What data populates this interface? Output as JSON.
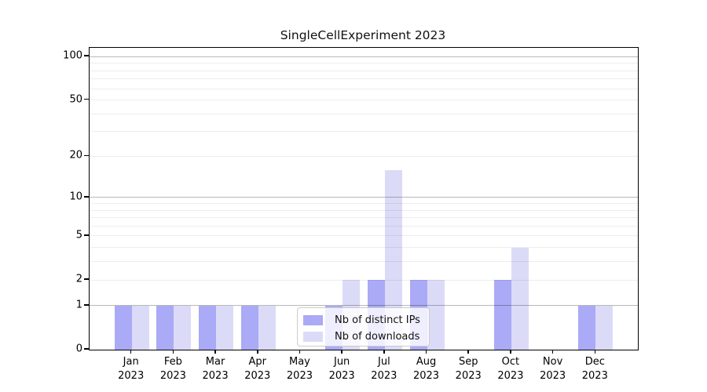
{
  "title": "SingleCellExperiment 2023",
  "chart_data": {
    "type": "bar",
    "title": "SingleCellExperiment 2023",
    "categories": [
      "Jan 2023",
      "Feb 2023",
      "Mar 2023",
      "Apr 2023",
      "May 2023",
      "Jun 2023",
      "Jul 2023",
      "Aug 2023",
      "Sep 2023",
      "Oct 2023",
      "Nov 2023",
      "Dec 2023"
    ],
    "series": [
      {
        "name": "Nb of distinct IPs",
        "color": "#aaaaf7",
        "values": [
          1,
          1,
          1,
          1,
          0,
          1,
          2,
          2,
          0,
          2,
          0,
          1
        ]
      },
      {
        "name": "Nb of downloads",
        "color": "#dbdbf8",
        "values": [
          1,
          1,
          1,
          1,
          0,
          2,
          16,
          2,
          0,
          4,
          0,
          1
        ]
      }
    ],
    "xlabel": "",
    "ylabel": "",
    "yscale": "log1p",
    "ylim": [
      0,
      115
    ],
    "y_ticks": [
      100,
      50,
      20,
      10,
      5,
      2,
      1,
      0
    ],
    "grid": "on",
    "grid_major_values": [
      1,
      10,
      100
    ],
    "grid_minor_values": [
      2,
      3,
      4,
      5,
      6,
      7,
      8,
      9,
      20,
      30,
      40,
      50,
      60,
      70,
      80,
      90
    ],
    "legend_position": "inside-bottom-center"
  },
  "colors": {
    "distinct_ips": "#aaaaf7",
    "downloads": "#dbdbf8",
    "spine": "#000000",
    "background": "#ffffff"
  }
}
